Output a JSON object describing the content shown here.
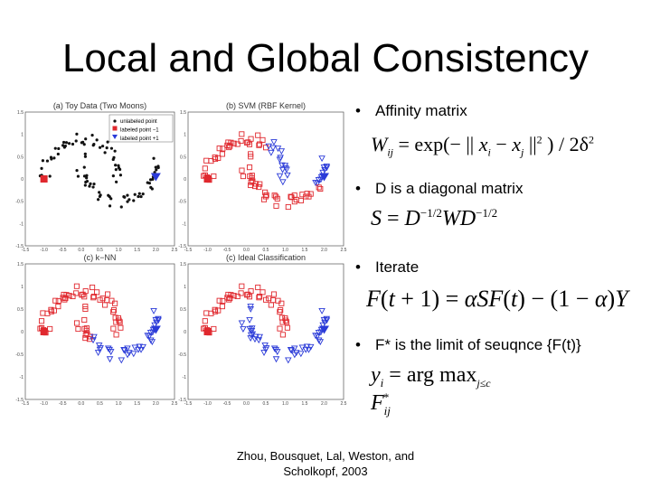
{
  "slide": {
    "title": "Local and Global Consistency",
    "citation_line1": "Zhou, Bousquet, Lal, Weston, and",
    "citation_line2": "Scholkopf, 2003"
  },
  "bullets": [
    {
      "text": "Affinity matrix"
    },
    {
      "text": "D is a diagonal matrix"
    },
    {
      "text": "Iterate"
    },
    {
      "text": "F* is the limit of seuqnce {F(t)}"
    }
  ],
  "equations": {
    "affinity": "W_ij = exp(−|| x_i − x_j ||^2 ) / 2δ^2",
    "normalize": "S = D^{−1/2} W D^{−1/2}",
    "iterate": "F(t+1) = αSF(t) − (1−α)Y",
    "label": "y_i = arg max_{j≤c} F*_ij"
  },
  "colors": {
    "red": "#e0282e",
    "blue": "#2a3ad8",
    "black": "#111111"
  },
  "chart_data": [
    {
      "type": "scatter",
      "title": "(a) Toy Data (Two Moons)",
      "legend": [
        "unlabeled point",
        "labeled point  −1",
        "labeled point  +1"
      ],
      "legend_position": "top-right"
    },
    {
      "type": "scatter",
      "title": "(b) SVM  (RBF Kernel)"
    },
    {
      "type": "scatter",
      "title": "(c) k−NN"
    },
    {
      "type": "scatter",
      "title": "(c) Ideal Classification"
    }
  ],
  "axes": {
    "xticks": [
      "-1.5",
      "-1.0",
      "-0.5",
      "0.0",
      "0.5",
      "1.0",
      "1.5",
      "2.0",
      "2.5"
    ],
    "yticks": [
      "1.5",
      "1",
      "0.5",
      "0",
      "-0.5",
      "-1",
      "-1.5"
    ]
  }
}
